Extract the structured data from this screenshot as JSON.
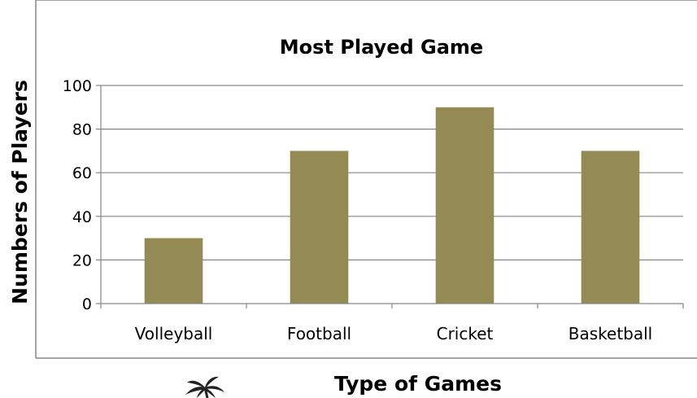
{
  "chart_data": {
    "type": "bar",
    "title": "Most Played Game",
    "xlabel": "Type of Games",
    "ylabel": "Numbers of Players",
    "categories": [
      "Volleyball",
      "Football",
      "Cricket",
      "Basketball"
    ],
    "values": [
      30,
      70,
      90,
      70
    ],
    "ylim": [
      0,
      100
    ],
    "yticks": [
      0,
      20,
      40,
      60,
      80,
      100
    ],
    "grid": true,
    "legend": "none",
    "bar_color": "#948a54",
    "grid_color": "#868686",
    "frame_color": "#868686"
  },
  "decoration": {
    "icon": "palm-tree-icon"
  }
}
